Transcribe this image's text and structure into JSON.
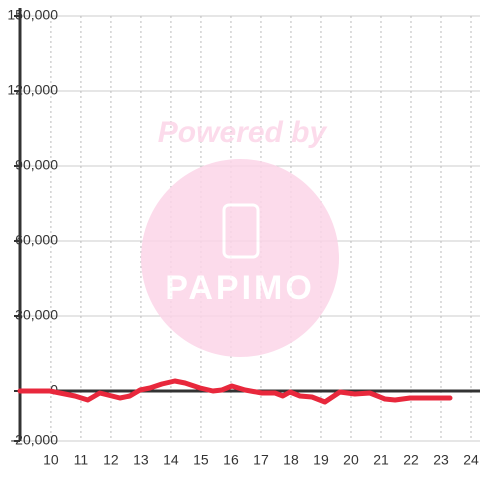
{
  "chart_data": {
    "type": "line",
    "watermark": "Powered by",
    "watermark_logo": "PAPIMO",
    "x": [
      8.97,
      9.97,
      10.3,
      10.8,
      11.23,
      11.63,
      11.9,
      12.3,
      12.63,
      12.97,
      13.3,
      13.7,
      14.13,
      14.47,
      14.97,
      15.4,
      15.7,
      16.03,
      16.47,
      17.03,
      17.47,
      17.73,
      17.97,
      18.3,
      18.7,
      19.13,
      19.63,
      20.13,
      20.63,
      21.13,
      21.47,
      21.97,
      23.3
    ],
    "series": [
      {
        "color": "#e8283c",
        "values": [
          0,
          0,
          -800,
          -2000,
          -3600,
          -800,
          -1600,
          -2800,
          -2000,
          400,
          1200,
          2800,
          4000,
          3200,
          1200,
          0,
          400,
          2000,
          400,
          -800,
          -800,
          -2000,
          -400,
          -2000,
          -2400,
          -4400,
          -400,
          -1200,
          -800,
          -3200,
          -3600,
          -2800,
          -2800
        ]
      }
    ],
    "xlim": [
      8.97,
      24.3
    ],
    "xticks": [
      10,
      11,
      12,
      13,
      14,
      15,
      16,
      17,
      18,
      19,
      20,
      21,
      22,
      23,
      24
    ],
    "ylim": [
      -20000,
      150000
    ],
    "yticks": [
      {
        "value": -20000,
        "label": "-20,000"
      },
      0,
      {
        "value": 30000,
        "label": "30,000"
      },
      {
        "value": 60000,
        "label": "60,000"
      },
      {
        "value": 90000,
        "label": "90,000"
      },
      {
        "value": 120000,
        "label": "120,000"
      },
      {
        "value": 150000,
        "label": "150,000"
      }
    ],
    "grid": true
  }
}
